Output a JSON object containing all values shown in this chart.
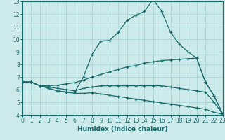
{
  "xlabel": "Humidex (Indice chaleur)",
  "xlim": [
    0,
    23
  ],
  "ylim": [
    4,
    13
  ],
  "xticks": [
    0,
    1,
    2,
    3,
    4,
    5,
    6,
    7,
    8,
    9,
    10,
    11,
    12,
    13,
    14,
    15,
    16,
    17,
    18,
    19,
    20,
    21,
    22,
    23
  ],
  "yticks": [
    4,
    5,
    6,
    7,
    8,
    9,
    10,
    11,
    12,
    13
  ],
  "bg_color": "#cdeaea",
  "grid_color": "#b0d8d8",
  "line_color": "#1a6b6b",
  "lines": [
    {
      "x": [
        0,
        1,
        2,
        3,
        4,
        5,
        6,
        7,
        8,
        9,
        10,
        11,
        12,
        13,
        14,
        15,
        16,
        17,
        18,
        19,
        20,
        21,
        22,
        23
      ],
      "y": [
        6.6,
        6.6,
        6.3,
        6.1,
        5.9,
        5.8,
        5.8,
        7.0,
        8.8,
        9.85,
        9.9,
        10.55,
        11.5,
        11.9,
        12.2,
        13.15,
        12.2,
        10.55,
        9.6,
        9.0,
        8.5,
        6.6,
        5.5,
        4.05
      ]
    },
    {
      "x": [
        0,
        1,
        2,
        3,
        4,
        5,
        6,
        7,
        8,
        9,
        10,
        11,
        12,
        13,
        14,
        15,
        16,
        17,
        18,
        19,
        20,
        21,
        22,
        23
      ],
      "y": [
        6.6,
        6.6,
        6.3,
        6.3,
        6.35,
        6.45,
        6.55,
        6.75,
        7.0,
        7.2,
        7.4,
        7.6,
        7.8,
        7.9,
        8.1,
        8.2,
        8.3,
        8.35,
        8.4,
        8.45,
        8.5,
        6.6,
        5.5,
        4.05
      ]
    },
    {
      "x": [
        0,
        1,
        2,
        3,
        4,
        5,
        6,
        7,
        8,
        9,
        10,
        11,
        12,
        13,
        14,
        15,
        16,
        17,
        18,
        19,
        20,
        21,
        22,
        23
      ],
      "y": [
        6.6,
        6.6,
        6.3,
        6.2,
        6.1,
        6.0,
        5.9,
        6.1,
        6.2,
        6.3,
        6.3,
        6.3,
        6.3,
        6.3,
        6.3,
        6.3,
        6.3,
        6.2,
        6.1,
        6.0,
        5.9,
        5.8,
        5.0,
        4.05
      ]
    },
    {
      "x": [
        0,
        1,
        2,
        3,
        4,
        5,
        6,
        7,
        8,
        9,
        10,
        11,
        12,
        13,
        14,
        15,
        16,
        17,
        18,
        19,
        20,
        21,
        22,
        23
      ],
      "y": [
        6.6,
        6.6,
        6.3,
        6.1,
        5.9,
        5.8,
        5.7,
        5.7,
        5.75,
        5.65,
        5.55,
        5.45,
        5.35,
        5.25,
        5.15,
        5.05,
        4.95,
        4.85,
        4.75,
        4.65,
        4.55,
        4.45,
        4.2,
        4.05
      ]
    }
  ]
}
